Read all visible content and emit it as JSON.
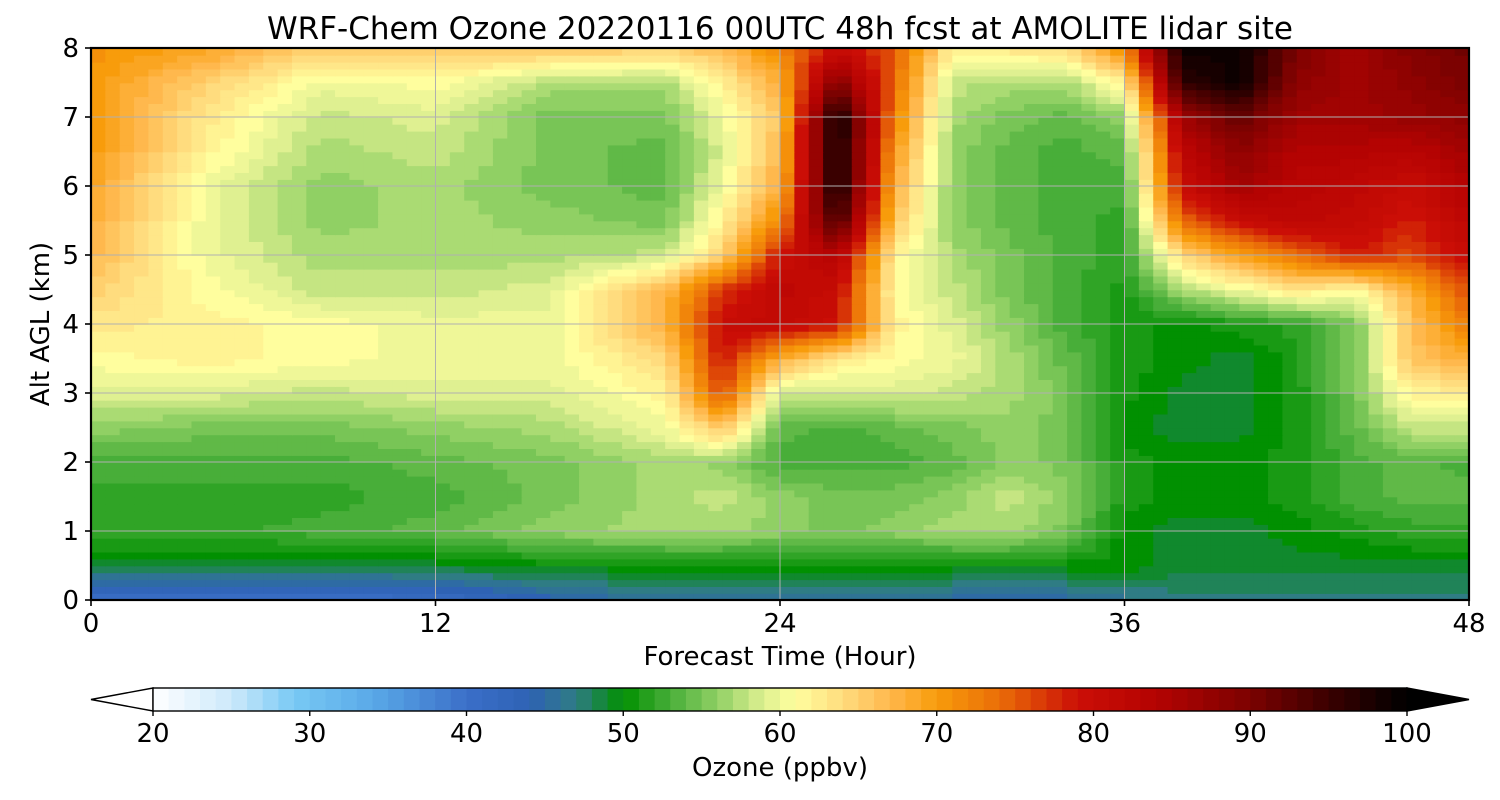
{
  "chart_data": {
    "type": "heatmap",
    "title": "WRF-Chem Ozone  20220116 00UTC 48h fcst at AMOLITE lidar site",
    "xlabel": "Forecast Time (Hour)",
    "ylabel": "Alt AGL (km)",
    "xlim": [
      0,
      48
    ],
    "ylim": [
      0,
      8
    ],
    "xticks": [
      "0",
      "12",
      "24",
      "36",
      "48"
    ],
    "yticks": [
      "0",
      "1",
      "2",
      "3",
      "4",
      "5",
      "6",
      "7",
      "8"
    ],
    "grid": true,
    "x": [
      0,
      4,
      8,
      12,
      16,
      20,
      22,
      24,
      26,
      28,
      30,
      32,
      34,
      36,
      38,
      40,
      42,
      44,
      46,
      48
    ],
    "y": [
      0,
      0.5,
      1,
      1.5,
      2,
      2.5,
      3,
      3.5,
      4,
      4.5,
      5,
      5.5,
      6,
      6.5,
      7,
      7.5,
      8
    ],
    "values": [
      [
        40,
        40,
        40,
        41,
        44,
        46,
        46,
        46,
        46,
        46,
        45,
        44,
        45,
        46,
        47,
        47,
        47,
        47,
        47,
        47
      ],
      [
        49,
        49,
        49,
        49,
        50,
        50,
        50,
        50,
        50,
        50,
        50,
        50,
        50,
        50,
        49,
        49,
        49,
        49,
        49,
        49
      ],
      [
        52,
        52,
        53,
        54,
        56,
        57,
        57,
        56,
        55,
        56,
        57,
        57,
        55,
        50,
        49,
        49,
        50,
        51,
        52,
        52
      ],
      [
        52,
        52,
        52,
        53,
        55,
        57,
        58,
        56,
        55,
        55,
        56,
        58,
        56,
        51,
        50,
        50,
        51,
        53,
        54,
        54
      ],
      [
        53,
        53,
        53,
        54,
        55,
        57,
        56,
        53,
        53,
        53,
        54,
        56,
        55,
        51,
        50,
        50,
        51,
        53,
        54,
        53
      ],
      [
        56,
        55,
        55,
        56,
        57,
        60,
        66,
        54,
        53,
        54,
        55,
        56,
        55,
        50,
        49,
        49,
        51,
        54,
        58,
        58
      ],
      [
        59,
        59,
        58,
        59,
        59,
        62,
        76,
        58,
        58,
        59,
        58,
        57,
        55,
        51,
        49,
        49,
        51,
        55,
        62,
        62
      ],
      [
        61,
        62,
        61,
        60,
        60,
        64,
        79,
        68,
        63,
        61,
        60,
        57,
        54,
        51,
        50,
        49,
        51,
        55,
        66,
        68
      ],
      [
        63,
        62,
        61,
        60,
        60,
        68,
        80,
        81,
        79,
        62,
        59,
        56,
        53,
        51,
        50,
        51,
        52,
        55,
        66,
        73
      ],
      [
        65,
        61,
        58,
        58,
        59,
        67,
        77,
        82,
        80,
        61,
        58,
        55,
        53,
        51,
        57,
        60,
        63,
        61,
        68,
        76
      ],
      [
        67,
        60,
        57,
        57,
        57,
        58,
        65,
        79,
        84,
        62,
        57,
        55,
        53,
        52,
        64,
        70,
        74,
        78,
        76,
        80
      ],
      [
        68,
        60,
        56,
        57,
        56,
        55,
        62,
        72,
        95,
        66,
        56,
        54,
        53,
        52,
        74,
        80,
        82,
        81,
        78,
        82
      ],
      [
        69,
        60,
        56,
        57,
        55,
        54,
        60,
        68,
        99,
        68,
        56,
        54,
        53,
        53,
        80,
        86,
        83,
        82,
        80,
        84
      ],
      [
        70,
        62,
        57,
        58,
        55,
        54,
        59,
        67,
        99,
        70,
        56,
        54,
        53,
        54,
        82,
        88,
        84,
        84,
        83,
        86
      ],
      [
        70,
        63,
        58,
        59,
        55,
        55,
        60,
        66,
        99,
        72,
        57,
        55,
        54,
        56,
        86,
        92,
        86,
        86,
        87,
        88
      ],
      [
        70,
        65,
        60,
        61,
        57,
        57,
        62,
        68,
        90,
        74,
        58,
        57,
        57,
        62,
        96,
        99,
        88,
        86,
        88,
        90
      ],
      [
        71,
        69,
        65,
        66,
        66,
        65,
        67,
        72,
        80,
        75,
        62,
        63,
        64,
        72,
        99,
        99,
        90,
        86,
        89,
        91
      ]
    ],
    "colorbar": {
      "label": "Ozone  (ppbv)",
      "min": 20,
      "max": 100,
      "ticks": [
        "20",
        "30",
        "40",
        "50",
        "60",
        "70",
        "80",
        "90",
        "100"
      ],
      "extend": "both"
    },
    "colormap": [
      [
        20,
        "#ffffff"
      ],
      [
        25,
        "#cde9fb"
      ],
      [
        29,
        "#78c9f4"
      ],
      [
        34,
        "#5aa9e8"
      ],
      [
        40,
        "#3b6fc8"
      ],
      [
        44,
        "#2e62b4"
      ],
      [
        47,
        "#2f7c84"
      ],
      [
        50,
        "#019001"
      ],
      [
        53,
        "#48ae39"
      ],
      [
        56,
        "#90d064"
      ],
      [
        59,
        "#dff091"
      ],
      [
        61,
        "#fffe9e"
      ],
      [
        64,
        "#ffdc7e"
      ],
      [
        67,
        "#ffb84d"
      ],
      [
        70,
        "#f89c0b"
      ],
      [
        74,
        "#ea6d08"
      ],
      [
        79,
        "#cb0e06"
      ],
      [
        84,
        "#b40302"
      ],
      [
        90,
        "#7c0201"
      ],
      [
        95,
        "#3a0000"
      ],
      [
        100,
        "#000000"
      ]
    ]
  }
}
